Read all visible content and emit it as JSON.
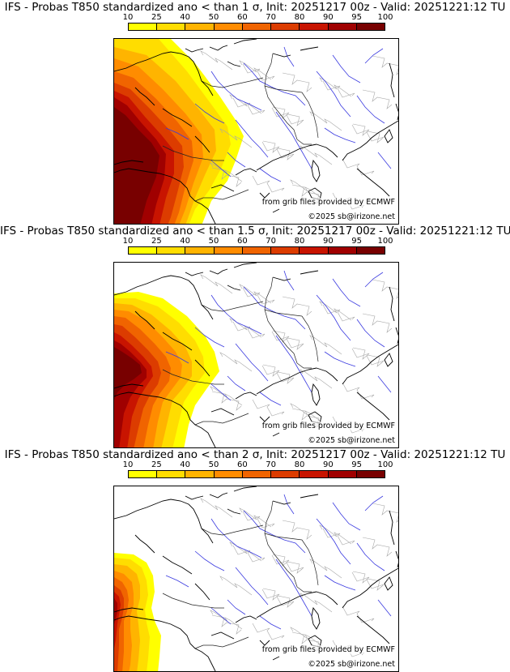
{
  "colorbar": {
    "ticks": [
      "10",
      "25",
      "40",
      "50",
      "60",
      "70",
      "80",
      "90",
      "95",
      "100"
    ],
    "colors": [
      "#ffff00",
      "#ffdd00",
      "#ffb400",
      "#ff8c00",
      "#f06400",
      "#dc3c00",
      "#c81400",
      "#a00000",
      "#780000"
    ]
  },
  "panels": [
    {
      "title": "IFS - Probas T850  standardized ano < than 1 σ, Init: 20251217 00z - Valid: 20251221:12 TU",
      "source_text": "from grib files provided by ECMWF",
      "copyright_text": "©2025 sb@irizone.net",
      "extent": "large"
    },
    {
      "title": "IFS - Probas T850  standardized ano < than 1.5 σ, Init: 20251217 00z - Valid: 20251221:12 TU",
      "source_text": "from grib files provided by ECMWF",
      "copyright_text": "©2025 sb@irizone.net",
      "extent": "medium"
    },
    {
      "title": "IFS - Probas T850  standardized ano < than 2 σ, Init: 20251217 00z - Valid: 20251221:12 TU",
      "source_text": "from grib files provided by ECMWF",
      "copyright_text": "©2025 sb@irizone.net",
      "extent": "small"
    }
  ]
}
